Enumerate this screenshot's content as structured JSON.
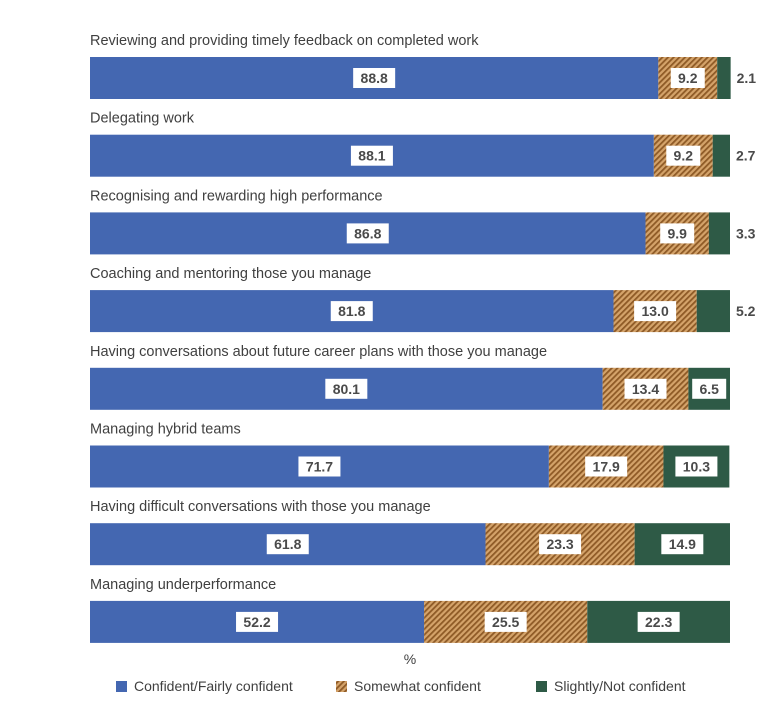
{
  "chart_data": {
    "type": "bar",
    "orientation": "horizontal",
    "stacked": true,
    "xlabel": "%",
    "xlim": [
      0,
      100
    ],
    "grid": false,
    "legend_position": "bottom",
    "categories": [
      "Reviewing and providing timely feedback on completed work",
      "Delegating work",
      "Recognising and rewarding high performance",
      "Coaching and mentoring those you manage",
      "Having conversations about future career plans with those you manage",
      "Managing hybrid teams",
      "Having difficult conversations with those you manage",
      "Managing underperformance"
    ],
    "series": [
      {
        "name": "Confident/Fairly confident",
        "color": "#4467b1",
        "pattern": "solid",
        "values": [
          88.8,
          88.1,
          86.8,
          81.8,
          80.1,
          71.7,
          61.8,
          52.2
        ]
      },
      {
        "name": "Somewhat confident",
        "color": "#b2773a",
        "pattern": "hatched",
        "values": [
          9.2,
          9.2,
          9.9,
          13.0,
          13.4,
          17.9,
          23.3,
          25.5
        ]
      },
      {
        "name": "Slightly/Not confident",
        "color": "#2e5a46",
        "pattern": "solid",
        "values": [
          2.1,
          2.7,
          3.3,
          5.2,
          6.5,
          10.3,
          14.9,
          22.3
        ]
      }
    ]
  }
}
